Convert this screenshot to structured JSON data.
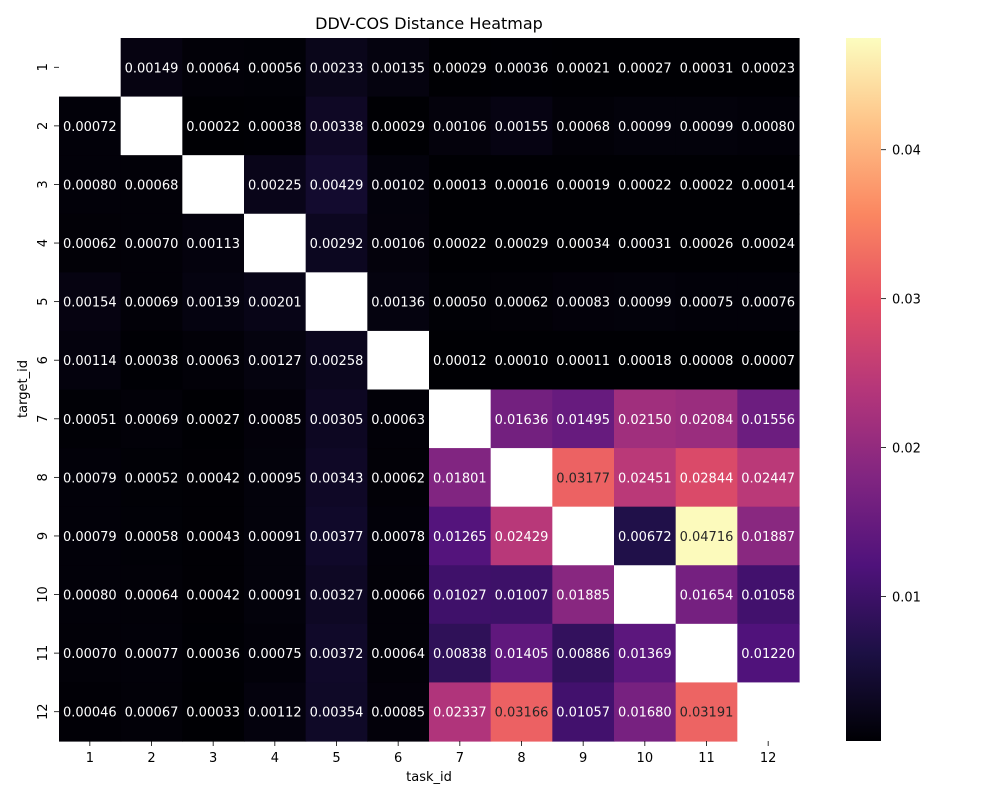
{
  "chart_data": {
    "type": "heatmap",
    "title": "DDV-COS Distance Heatmap",
    "xlabel": "task_id",
    "ylabel": "target_id",
    "x_categories": [
      "1",
      "2",
      "3",
      "4",
      "5",
      "6",
      "7",
      "8",
      "9",
      "10",
      "11",
      "12"
    ],
    "y_categories": [
      "1",
      "2",
      "3",
      "4",
      "5",
      "6",
      "7",
      "8",
      "9",
      "10",
      "11",
      "12"
    ],
    "colormap": "magma",
    "value_range": [
      0.0003,
      0.0475
    ],
    "colorbar_ticks": [
      0.01,
      0.02,
      0.03,
      0.04
    ],
    "colorbar_tick_labels": [
      "0.01",
      "0.02",
      "0.03",
      "0.04"
    ],
    "diagonal_empty": true,
    "values": [
      [
        null,
        0.00149,
        0.00064,
        0.00056,
        0.00233,
        0.00135,
        0.00029,
        0.00036,
        0.00021,
        0.00027,
        0.00031,
        0.00023
      ],
      [
        0.00072,
        null,
        0.00022,
        0.00038,
        0.00338,
        0.00029,
        0.00106,
        0.00155,
        0.00068,
        0.00099,
        0.00099,
        0.0008
      ],
      [
        0.0008,
        0.00068,
        null,
        0.00225,
        0.00429,
        0.00102,
        0.00013,
        0.00016,
        0.00019,
        0.00022,
        0.00022,
        0.00014
      ],
      [
        0.00062,
        0.0007,
        0.00113,
        null,
        0.00292,
        0.00106,
        0.00022,
        0.00029,
        0.00034,
        0.00031,
        0.00026,
        0.00024
      ],
      [
        0.00154,
        0.00069,
        0.00139,
        0.00201,
        null,
        0.00136,
        0.0005,
        0.00062,
        0.00083,
        0.00099,
        0.00075,
        0.00076
      ],
      [
        0.00114,
        0.00038,
        0.00063,
        0.00127,
        0.00258,
        null,
        0.00012,
        0.0001,
        0.00011,
        0.00018,
        8e-05,
        7e-05
      ],
      [
        0.00051,
        0.00069,
        0.00027,
        0.00085,
        0.00305,
        0.00063,
        null,
        0.01636,
        0.01495,
        0.0215,
        0.02084,
        0.01556
      ],
      [
        0.00079,
        0.00052,
        0.00042,
        0.00095,
        0.00343,
        0.00062,
        0.01801,
        null,
        0.03177,
        0.02451,
        0.02844,
        0.02447
      ],
      [
        0.00079,
        0.00058,
        0.00043,
        0.00091,
        0.00377,
        0.00078,
        0.01265,
        0.02429,
        null,
        0.00672,
        0.04716,
        0.01887
      ],
      [
        0.0008,
        0.00064,
        0.00042,
        0.00091,
        0.00327,
        0.00066,
        0.01027,
        0.01007,
        0.01885,
        null,
        0.01654,
        0.01058
      ],
      [
        0.0007,
        0.00077,
        0.00036,
        0.00075,
        0.00372,
        0.00064,
        0.00838,
        0.01405,
        0.00886,
        0.01369,
        null,
        0.0122
      ],
      [
        0.00046,
        0.00067,
        0.00033,
        0.00112,
        0.00354,
        0.00085,
        0.02337,
        0.03166,
        0.01057,
        0.0168,
        0.03191,
        null
      ]
    ],
    "value_format_decimals": 5
  }
}
